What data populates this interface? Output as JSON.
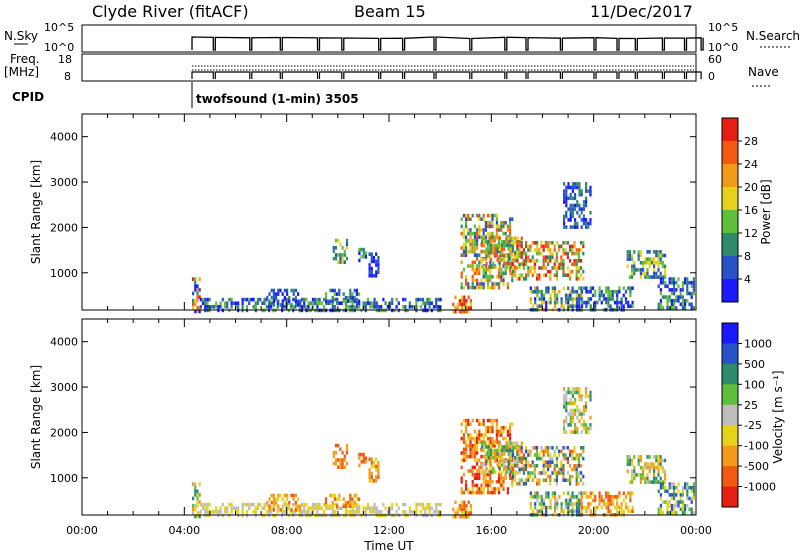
{
  "header": {
    "title": "Clyde River (fitACF)",
    "beam": "Beam 15",
    "date": "11/Dec/2017"
  },
  "top_panels": {
    "nsky_label": "N.Sky",
    "nsky_ticks": [
      "10^5",
      "10^0"
    ],
    "nsearch_label": "N.Search",
    "nsearch_ticks": [
      "10^5",
      "10^0"
    ],
    "freq_label_1": "Freq.",
    "freq_label_2": "[MHz]",
    "freq_ticks": [
      "18",
      "8"
    ],
    "nave_label": "Nave",
    "nave_ticks": [
      "60",
      "0"
    ],
    "cpid_label": "CPID",
    "cpid_text": "twofsound (1-min) 3505",
    "cpid_start_hour": 4.3
  },
  "chart_data": [
    {
      "type": "heatmap",
      "name": "power",
      "ylabel": "Slant Range [km]",
      "yticks": [
        "1000",
        "2000",
        "3000",
        "4000"
      ],
      "ylim": [
        180,
        4500
      ],
      "xlim": [
        0,
        24
      ],
      "colorbar_label": "Power [dB]",
      "colorbar_ticks": [
        "4",
        "8",
        "12",
        "16",
        "20",
        "24",
        "28"
      ],
      "colors": [
        "#1a1aff",
        "#2a52c8",
        "#2e8a6a",
        "#5fbf3a",
        "#e6d21a",
        "#f29a1a",
        "#f25a14",
        "#e61e14"
      ],
      "clusters": [
        {
          "x0": 4.3,
          "x1": 4.6,
          "y0": 180,
          "y1": 900,
          "lvl": [
            0,
            7
          ]
        },
        {
          "x0": 4.6,
          "x1": 14.0,
          "y0": 180,
          "y1": 450,
          "lvl": [
            0,
            3
          ]
        },
        {
          "x0": 7.2,
          "x1": 8.5,
          "y0": 300,
          "y1": 650,
          "lvl": [
            0,
            2
          ]
        },
        {
          "x0": 9.5,
          "x1": 10.8,
          "y0": 350,
          "y1": 650,
          "lvl": [
            0,
            3
          ]
        },
        {
          "x0": 9.8,
          "x1": 10.4,
          "y0": 1200,
          "y1": 1750,
          "lvl": [
            1,
            4
          ]
        },
        {
          "x0": 10.8,
          "x1": 11.1,
          "y0": 1300,
          "y1": 1550,
          "lvl": [
            0,
            3
          ]
        },
        {
          "x0": 11.2,
          "x1": 11.6,
          "y0": 950,
          "y1": 1450,
          "lvl": [
            0,
            1
          ]
        },
        {
          "x0": 14.3,
          "x1": 15.2,
          "y0": 180,
          "y1": 500,
          "lvl": [
            4,
            7
          ]
        },
        {
          "x0": 14.8,
          "x1": 16.8,
          "y0": 700,
          "y1": 2300,
          "lvl": [
            1,
            6
          ]
        },
        {
          "x0": 15.6,
          "x1": 17.2,
          "y0": 1100,
          "y1": 1800,
          "lvl": [
            2,
            6
          ]
        },
        {
          "x0": 16.8,
          "x1": 19.6,
          "y0": 900,
          "y1": 1700,
          "lvl": [
            2,
            7
          ]
        },
        {
          "x0": 17.5,
          "x1": 19.5,
          "y0": 180,
          "y1": 700,
          "lvl": [
            0,
            5
          ]
        },
        {
          "x0": 19.5,
          "x1": 21.5,
          "y0": 180,
          "y1": 700,
          "lvl": [
            0,
            3
          ]
        },
        {
          "x0": 21.2,
          "x1": 22.8,
          "y0": 900,
          "y1": 1500,
          "lvl": [
            1,
            4
          ]
        },
        {
          "x0": 22.5,
          "x1": 23.9,
          "y0": 200,
          "y1": 900,
          "lvl": [
            0,
            3
          ]
        },
        {
          "x0": 18.8,
          "x1": 19.9,
          "y0": 2000,
          "y1": 3000,
          "lvl": [
            0,
            2
          ]
        }
      ]
    },
    {
      "type": "heatmap",
      "name": "velocity",
      "ylabel": "Slant Range [km]",
      "yticks": [
        "1000",
        "2000",
        "3000",
        "4000"
      ],
      "ylim": [
        180,
        4500
      ],
      "xlim": [
        0,
        24
      ],
      "colorbar_label": "Velocity [m s⁻¹]",
      "colorbar_ticks": [
        "1000",
        "500",
        "100",
        "25",
        "-25",
        "-100",
        "-500",
        "-1000"
      ],
      "colors": [
        "#1a1aff",
        "#2a52c8",
        "#2e8a6a",
        "#5fbf3a",
        "#bdbdbd",
        "#e6d21a",
        "#f29a1a",
        "#f25a14",
        "#e61e14"
      ],
      "clusters": [
        {
          "x0": 4.3,
          "x1": 4.6,
          "y0": 180,
          "y1": 900,
          "lvl": [
            2,
            6
          ]
        },
        {
          "x0": 4.6,
          "x1": 14.0,
          "y0": 180,
          "y1": 450,
          "lvl": [
            4,
            5
          ]
        },
        {
          "x0": 7.2,
          "x1": 8.5,
          "y0": 300,
          "y1": 650,
          "lvl": [
            5,
            7
          ]
        },
        {
          "x0": 9.5,
          "x1": 10.8,
          "y0": 350,
          "y1": 650,
          "lvl": [
            5,
            7
          ]
        },
        {
          "x0": 9.8,
          "x1": 10.4,
          "y0": 1200,
          "y1": 1750,
          "lvl": [
            6,
            7
          ]
        },
        {
          "x0": 10.8,
          "x1": 11.1,
          "y0": 1300,
          "y1": 1550,
          "lvl": [
            6,
            7
          ]
        },
        {
          "x0": 11.2,
          "x1": 11.6,
          "y0": 950,
          "y1": 1450,
          "lvl": [
            5,
            7
          ]
        },
        {
          "x0": 14.3,
          "x1": 15.2,
          "y0": 180,
          "y1": 500,
          "lvl": [
            5,
            7
          ]
        },
        {
          "x0": 14.8,
          "x1": 16.8,
          "y0": 700,
          "y1": 2300,
          "lvl": [
            5,
            8
          ]
        },
        {
          "x0": 15.6,
          "x1": 17.2,
          "y0": 1100,
          "y1": 1800,
          "lvl": [
            2,
            6
          ]
        },
        {
          "x0": 16.8,
          "x1": 19.6,
          "y0": 900,
          "y1": 1700,
          "lvl": [
            1,
            7
          ]
        },
        {
          "x0": 17.5,
          "x1": 19.5,
          "y0": 180,
          "y1": 700,
          "lvl": [
            1,
            6
          ]
        },
        {
          "x0": 19.5,
          "x1": 21.5,
          "y0": 180,
          "y1": 700,
          "lvl": [
            5,
            7
          ]
        },
        {
          "x0": 21.2,
          "x1": 22.8,
          "y0": 900,
          "y1": 1500,
          "lvl": [
            2,
            6
          ]
        },
        {
          "x0": 22.5,
          "x1": 23.9,
          "y0": 200,
          "y1": 900,
          "lvl": [
            1,
            5
          ]
        },
        {
          "x0": 18.8,
          "x1": 19.9,
          "y0": 2000,
          "y1": 3000,
          "lvl": [
            2,
            6
          ]
        }
      ]
    }
  ],
  "x_axis": {
    "label": "Time UT",
    "ticks": [
      "00:00",
      "04:00",
      "08:00",
      "12:00",
      "16:00",
      "20:00",
      "00:00"
    ]
  }
}
